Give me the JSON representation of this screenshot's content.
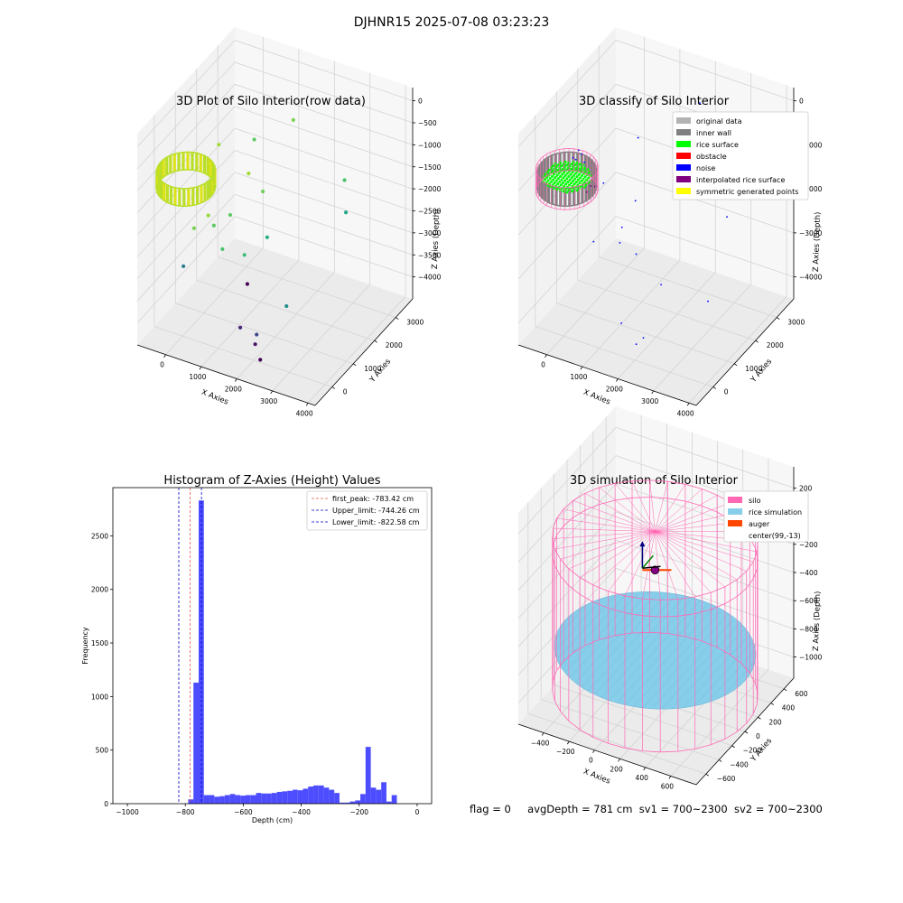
{
  "figure": {
    "suptitle": "DJHNR15 2025-07-08 03:23:23",
    "footer": {
      "flag": "flag = 0",
      "avg_depth": "avgDepth = 781 cm",
      "sv1": "sv1 = 700~2300",
      "sv2": "sv2 = 700~2300"
    }
  },
  "colors": {
    "hist_bar": "#4d4dff",
    "first_peak_line": "#e8584a",
    "limit_line": "#0000cc",
    "original_data": "#b3b3b3",
    "inner_wall": "#808080",
    "rice_surface": "#00ff00",
    "obstacle": "#ff0000",
    "noise": "#0000ff",
    "interpolated_rice_surface": "#800080",
    "symmetric_generated_points": "#ffff00",
    "silo": "#ff69b4",
    "rice_simulation": "#87ceeb",
    "auger": "#ff4500"
  },
  "chart_data": [
    {
      "type": "scatter",
      "projection": "3d",
      "title": "3D Plot of Silo Interior(row data)",
      "xlabel": "X Axies",
      "ylabel": "Y Axies",
      "zlabel": "Z Axies (Depth)",
      "xticks": [
        "0",
        "1000",
        "2000",
        "3000",
        "4000"
      ],
      "yticks": [
        "0",
        "1000",
        "2000",
        "3000"
      ],
      "zticks": [
        "0",
        "−500",
        "−1000",
        "−1500",
        "−2000",
        "−2500",
        "−3000",
        "−3500",
        "−4000"
      ],
      "xlim": [
        -800,
        4200
      ],
      "ylim": [
        -800,
        3800
      ],
      "zlim": [
        -4500,
        300
      ],
      "colormap": "viridis",
      "grid": true,
      "series": [
        {
          "kind": "ring",
          "cx": 99,
          "cy": -13,
          "r": 700,
          "ztop": -700,
          "zbottom": -1100,
          "colors": [
            "#b8de29",
            "#dde318",
            "#c0df25"
          ]
        },
        {
          "kind": "points",
          "points": [
            {
              "x": 300,
              "y": 1200,
              "z": -700,
              "c": "#a2da37"
            },
            {
              "x": 700,
              "y": 2200,
              "z": -1000,
              "c": "#5ec962"
            },
            {
              "x": 1500,
              "y": 2700,
              "z": -600,
              "c": "#7ad151"
            },
            {
              "x": 900,
              "y": 1600,
              "z": -1400,
              "c": "#a2da37"
            },
            {
              "x": 3000,
              "y": 2600,
              "z": -1500,
              "c": "#4ac16d"
            },
            {
              "x": 200,
              "y": 200,
              "z": -2100,
              "c": "#7ad151"
            },
            {
              "x": 800,
              "y": 900,
              "z": -2000,
              "c": "#5ec962"
            },
            {
              "x": 400,
              "y": 800,
              "z": -2300,
              "c": "#5ec962"
            },
            {
              "x": 700,
              "y": 700,
              "z": -2700,
              "c": "#4ac16d"
            },
            {
              "x": 1200,
              "y": 900,
              "z": -2800,
              "c": "#3bbb75"
            },
            {
              "x": 1600,
              "y": 1300,
              "z": -2500,
              "c": "#2ab07f"
            },
            {
              "x": 2800,
              "y": 3000,
              "z": -2500,
              "c": "#22a884"
            },
            {
              "x": 200,
              "y": -300,
              "z": -2700,
              "c": "#2a788e"
            },
            {
              "x": 1400,
              "y": 700,
              "z": -3300,
              "c": "#440154"
            },
            {
              "x": 2500,
              "y": 700,
              "z": -3500,
              "c": "#21918c"
            },
            {
              "x": 1500,
              "y": 200,
              "z": -4000,
              "c": "#482677"
            },
            {
              "x": 1900,
              "y": 300,
              "z": -4100,
              "c": "#3f4788"
            },
            {
              "x": 2300,
              "y": -200,
              "z": -4300,
              "c": "#440154"
            },
            {
              "x": 1800,
              "y": 400,
              "z": -4400,
              "c": "#481567"
            },
            {
              "x": 1300,
              "y": 1600,
              "z": -1700,
              "c": "#6ece58"
            },
            {
              "x": 600,
              "y": 200,
              "z": -1700,
              "c": "#95d840"
            }
          ]
        }
      ]
    },
    {
      "type": "scatter",
      "projection": "3d",
      "title": "3D classify of Silo Interior",
      "xlabel": "X Axies",
      "ylabel": "Y Axies",
      "zlabel": "Z Axies (Depth)",
      "xticks": [
        "0",
        "1000",
        "2000",
        "3000",
        "4000"
      ],
      "yticks": [
        "0",
        "1000",
        "2000",
        "3000"
      ],
      "zticks": [
        "0",
        "−1000",
        "−2000",
        "−3000",
        "−4000"
      ],
      "xlim": [
        -800,
        4200
      ],
      "ylim": [
        -800,
        3800
      ],
      "zlim": [
        -4500,
        300
      ],
      "legend": {
        "position": "top-right",
        "entries": [
          {
            "label": "original data",
            "color": "#b3b3b3"
          },
          {
            "label": "inner wall",
            "color": "#808080"
          },
          {
            "label": "rice surface",
            "color": "#00ff00"
          },
          {
            "label": "obstacle",
            "color": "#ff0000"
          },
          {
            "label": "noise",
            "color": "#0000ff"
          },
          {
            "label": "interpolated rice surface",
            "color": "#800080"
          },
          {
            "label": "symmetric generated points",
            "color": "#ffff00"
          }
        ]
      },
      "grid": true,
      "series": [
        {
          "kind": "ring",
          "name": "inner wall",
          "cx": 99,
          "cy": -13,
          "r": 700,
          "ztop": -700,
          "zbottom": -1100,
          "color": "#808080"
        },
        {
          "kind": "surface",
          "name": "rice surface",
          "cx": 99,
          "cy": -13,
          "r": 600,
          "z": -850,
          "color": "#00ff00"
        },
        {
          "kind": "ring_outline",
          "name": "silo",
          "cx": 99,
          "cy": -13,
          "r": 750,
          "ztop": -650,
          "zbottom": -1150,
          "color": "#ff69b4"
        },
        {
          "kind": "points",
          "name": "noise",
          "color": "#0000ff",
          "points": [
            {
              "x": 300,
              "y": 200,
              "z": -300
            },
            {
              "x": 350,
              "y": 250,
              "z": -400
            },
            {
              "x": 250,
              "y": 150,
              "z": -500
            },
            {
              "x": 400,
              "y": 300,
              "z": -600
            },
            {
              "x": 200,
              "y": 100,
              "z": -450
            },
            {
              "x": 900,
              "y": 2000,
              "z": -800
            },
            {
              "x": 1500,
              "y": 2700,
              "z": -600
            },
            {
              "x": 1800,
              "y": 3400,
              "z": -500
            },
            {
              "x": 700,
              "y": 700,
              "z": -1200
            },
            {
              "x": 1300,
              "y": 1200,
              "z": -1700
            },
            {
              "x": 2800,
              "y": 3000,
              "z": -2600
            },
            {
              "x": 1100,
              "y": 800,
              "z": -2500
            },
            {
              "x": 1500,
              "y": 900,
              "z": -2700
            },
            {
              "x": 2200,
              "y": 900,
              "z": -3200
            },
            {
              "x": 3100,
              "y": 1600,
              "z": -3700
            },
            {
              "x": 1500,
              "y": 200,
              "z": -3900
            },
            {
              "x": 2000,
              "y": 400,
              "z": -4200
            },
            {
              "x": 1800,
              "y": 400,
              "z": -4400
            },
            {
              "x": 1100,
              "y": 900,
              "z": -2200
            },
            {
              "x": 600,
              "y": 400,
              "z": -2400
            }
          ]
        },
        {
          "kind": "points",
          "name": "interpolated rice surface",
          "color": "#800080",
          "points": [
            {
              "x": 700,
              "y": 100,
              "z": -950
            },
            {
              "x": 750,
              "y": 200,
              "z": -1000
            },
            {
              "x": 650,
              "y": 0,
              "z": -1050
            }
          ]
        }
      ]
    },
    {
      "type": "bar",
      "title": "Histogram of Z-Axies (Height) Values",
      "xlabel": "Depth (cm)",
      "ylabel": "Frequency",
      "xlim": [
        -1050,
        50
      ],
      "ylim": [
        0,
        2950
      ],
      "xticks": [
        -1000,
        -800,
        -600,
        -400,
        -200,
        0
      ],
      "xtick_labels": [
        "−1000",
        "−800",
        "−600",
        "−400",
        "−200",
        "0"
      ],
      "yticks": [
        0,
        500,
        1000,
        1500,
        2000,
        2500
      ],
      "bin_start": -1024,
      "bin_width": 18,
      "values": [
        0,
        0,
        0,
        0,
        0,
        0,
        0,
        0,
        0,
        0,
        0,
        0,
        0,
        40,
        1130,
        2830,
        80,
        80,
        65,
        70,
        80,
        90,
        80,
        75,
        80,
        80,
        100,
        95,
        95,
        100,
        110,
        115,
        120,
        130,
        125,
        140,
        160,
        170,
        170,
        150,
        130,
        100,
        10,
        10,
        20,
        30,
        90,
        530,
        150,
        130,
        200,
        20,
        80
      ],
      "reference_lines": [
        {
          "label": "first_peak: -783.42 cm",
          "x": -783.42,
          "color": "#e8584a"
        },
        {
          "label": "Upper_limit: -744.26 cm",
          "x": -744.26,
          "color": "#0000cc"
        },
        {
          "label": "Lower_limit: -822.58 cm",
          "x": -822.58,
          "color": "#0000cc"
        }
      ],
      "legend": "top-right",
      "grid": false
    },
    {
      "type": "surface",
      "projection": "3d",
      "title": "3D simulation of Silo Interior",
      "xlabel": "X Axies",
      "ylabel": "Y Axies",
      "zlabel": "Z Axies (Depth)",
      "xticks": [
        "−400",
        "−200",
        "0",
        "200",
        "400",
        "600"
      ],
      "yticks": [
        "−600",
        "−400",
        "−200",
        "0",
        "200",
        "400",
        "600"
      ],
      "zticks": [
        "200",
        "0",
        "−200",
        "−400",
        "−600",
        "−800",
        "−1000"
      ],
      "xlim": [
        -600,
        800
      ],
      "ylim": [
        -750,
        750
      ],
      "zlim": [
        -1150,
        350
      ],
      "legend": {
        "position": "top-right",
        "entries": [
          {
            "label": "silo",
            "color": "#ff69b4"
          },
          {
            "label": "rice simulation",
            "color": "#87ceeb"
          },
          {
            "label": "auger",
            "color": "#ff4500"
          },
          {
            "label": "center(99,-13)",
            "color": "#ffffff"
          }
        ]
      },
      "silo": {
        "cx": 99,
        "cy": -13,
        "r": 720,
        "ztop": 0,
        "zbottom": -1080
      },
      "rice_surface": {
        "z": -783
      },
      "center": {
        "x": 99,
        "y": -13
      },
      "grid": true
    }
  ]
}
